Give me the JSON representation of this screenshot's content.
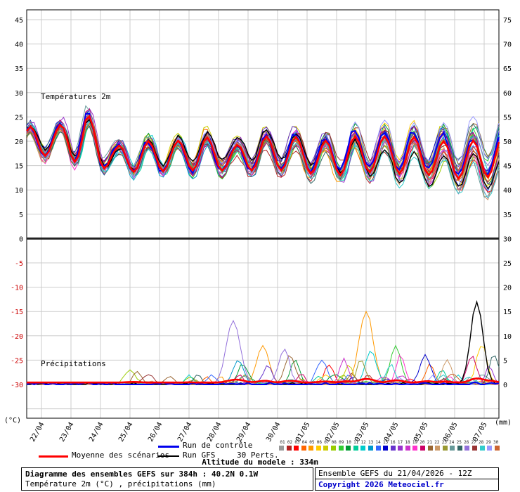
{
  "chart_data": {
    "type": "line",
    "title": "Diagramme des ensembles GEFS sur 384h : 40.2N 0.1W",
    "panel_labels": {
      "temperature": "Températures 2m",
      "precipitation": "Précipitations"
    },
    "units": {
      "left": "(°C)",
      "right": "(mm)"
    },
    "x_dates": [
      "22/04",
      "23/04",
      "24/04",
      "25/04",
      "26/04",
      "27/04",
      "28/04",
      "29/04",
      "30/04",
      "01/05",
      "02/05",
      "03/05",
      "04/05",
      "05/05",
      "06/05",
      "07/05"
    ],
    "hours_total": 384,
    "hours_step": 3,
    "left_axis_ticks": [
      45,
      40,
      35,
      30,
      25,
      20,
      15,
      10,
      5,
      0,
      -5,
      -10,
      -15,
      -20,
      -25,
      -30
    ],
    "right_axis_ticks": [
      75,
      70,
      65,
      60,
      55,
      50,
      45,
      40,
      35,
      30,
      25,
      20,
      15,
      10,
      5,
      0
    ],
    "negative_tick_color": "#cc0000",
    "grid_color": "#cccccc",
    "members": 30,
    "temperature": {
      "daily_max": [
        23,
        26,
        19,
        20,
        20,
        21,
        19,
        21,
        21,
        20,
        21,
        21,
        21,
        20,
        20,
        21
      ],
      "daily_min": [
        17,
        15,
        14,
        13.5,
        14,
        14,
        14,
        14,
        14,
        13,
        13,
        14,
        13,
        13,
        12,
        13
      ],
      "ensemble_spread": [
        1.5,
        2,
        1.5,
        1.5,
        1.5,
        2,
        2,
        2,
        2.5,
        2.5,
        3,
        3,
        3.5,
        4,
        4.5,
        5
      ]
    },
    "precipitation": {
      "mean_base_mm": 0.4,
      "events": [
        {
          "hour": 84,
          "member": 7,
          "peak_mm": 3,
          "width_h": 6
        },
        {
          "hour": 90,
          "member": 20,
          "peak_mm": 2.5,
          "width_h": 5
        },
        {
          "hour": 132,
          "member": 11,
          "peak_mm": 2,
          "width_h": 4
        },
        {
          "hour": 168,
          "member": 25,
          "peak_mm": 13,
          "width_h": 8
        },
        {
          "hour": 172,
          "member": 12,
          "peak_mm": 5,
          "width_h": 6
        },
        {
          "hour": 176,
          "member": 9,
          "peak_mm": 4,
          "width_h": 6
        },
        {
          "hour": 192,
          "member": 4,
          "peak_mm": 8,
          "width_h": 7
        },
        {
          "hour": 196,
          "member": 15,
          "peak_mm": 4,
          "width_h": 5
        },
        {
          "hour": 210,
          "member": 25,
          "peak_mm": 4,
          "width_h": 5
        },
        {
          "hour": 214,
          "member": 20,
          "peak_mm": 6,
          "width_h": 6
        },
        {
          "hour": 218,
          "member": 9,
          "peak_mm": 5,
          "width_h": 5
        },
        {
          "hour": 240,
          "member": 13,
          "peak_mm": 5,
          "width_h": 6
        },
        {
          "hour": 246,
          "member": 2,
          "peak_mm": 4,
          "width_h": 5
        },
        {
          "hour": 258,
          "member": 17,
          "peak_mm": 5,
          "width_h": 5
        },
        {
          "hour": 262,
          "member": 6,
          "peak_mm": 4,
          "width_h": 5
        },
        {
          "hour": 272,
          "member": 22,
          "peak_mm": 5,
          "width_h": 5
        },
        {
          "hour": 276,
          "member": 4,
          "peak_mm": 15,
          "width_h": 8
        },
        {
          "hour": 280,
          "member": 11,
          "peak_mm": 7,
          "width_h": 6
        },
        {
          "hour": 296,
          "member": 27,
          "peak_mm": 4,
          "width_h": 5
        },
        {
          "hour": 300,
          "member": 8,
          "peak_mm": 8,
          "width_h": 6
        },
        {
          "hour": 304,
          "member": 18,
          "peak_mm": 6,
          "width_h": 5
        },
        {
          "hour": 324,
          "member": 14,
          "peak_mm": 6,
          "width_h": 6
        },
        {
          "hour": 328,
          "member": 3,
          "peak_mm": 4,
          "width_h": 5
        },
        {
          "hour": 338,
          "member": 10,
          "peak_mm": 3,
          "width_h": 4
        },
        {
          "hour": 342,
          "member": 21,
          "peak_mm": 5,
          "width_h": 5
        },
        {
          "hour": 362,
          "member": 19,
          "peak_mm": 6,
          "width_h": 5
        },
        {
          "hour": 366,
          "member": -1,
          "peak_mm": 17,
          "width_h": 7
        },
        {
          "hour": 370,
          "member": 5,
          "peak_mm": 8,
          "width_h": 6
        },
        {
          "hour": 376,
          "member": 16,
          "peak_mm": 4,
          "width_h": 4
        },
        {
          "hour": 380,
          "member": 24,
          "peak_mm": 6,
          "width_h": 5
        }
      ]
    },
    "member_colors": [
      "#999999",
      "#b22222",
      "#ff0000",
      "#ff6600",
      "#ff9900",
      "#ffcc00",
      "#cccc00",
      "#99cc00",
      "#33cc33",
      "#009933",
      "#00cc99",
      "#00cccc",
      "#0099cc",
      "#3366ff",
      "#0000cc",
      "#6633cc",
      "#9933cc",
      "#cc33cc",
      "#ff33cc",
      "#cc0066",
      "#996633",
      "#cc9966",
      "#999933",
      "#669999",
      "#336666",
      "#9370db",
      "#993333",
      "#33cccc",
      "#9999ff",
      "#cc6633"
    ],
    "special_series": {
      "mean": {
        "label": "Moyenne des scénarios",
        "color": "#ff0000"
      },
      "control": {
        "label": "Run de contrôle",
        "color": "#0000ee"
      },
      "gfs": {
        "label": "Run GFS",
        "color": "#000000"
      }
    }
  },
  "legend": {
    "perts_label": "30 Perts.",
    "pert_numbers": [
      "01",
      "02",
      "03",
      "04",
      "05",
      "06",
      "07",
      "08",
      "09",
      "10",
      "11",
      "12",
      "13",
      "14",
      "15",
      "16",
      "17",
      "18",
      "19",
      "20",
      "21",
      "22",
      "23",
      "24",
      "25",
      "26",
      "27",
      "28",
      "29",
      "30"
    ]
  },
  "altitude_text": "Altitude du modele : 334m",
  "footer": {
    "title": "Diagramme des ensembles GEFS sur 384h : 40.2N 0.1W",
    "subtitle": "Température 2m (°C) , précipitations (mm)",
    "run_info": "Ensemble GEFS du 21/04/2026 - 12Z",
    "copyright": "Copyright 2026 Meteociel.fr",
    "copyright_color": "#0000cc"
  }
}
